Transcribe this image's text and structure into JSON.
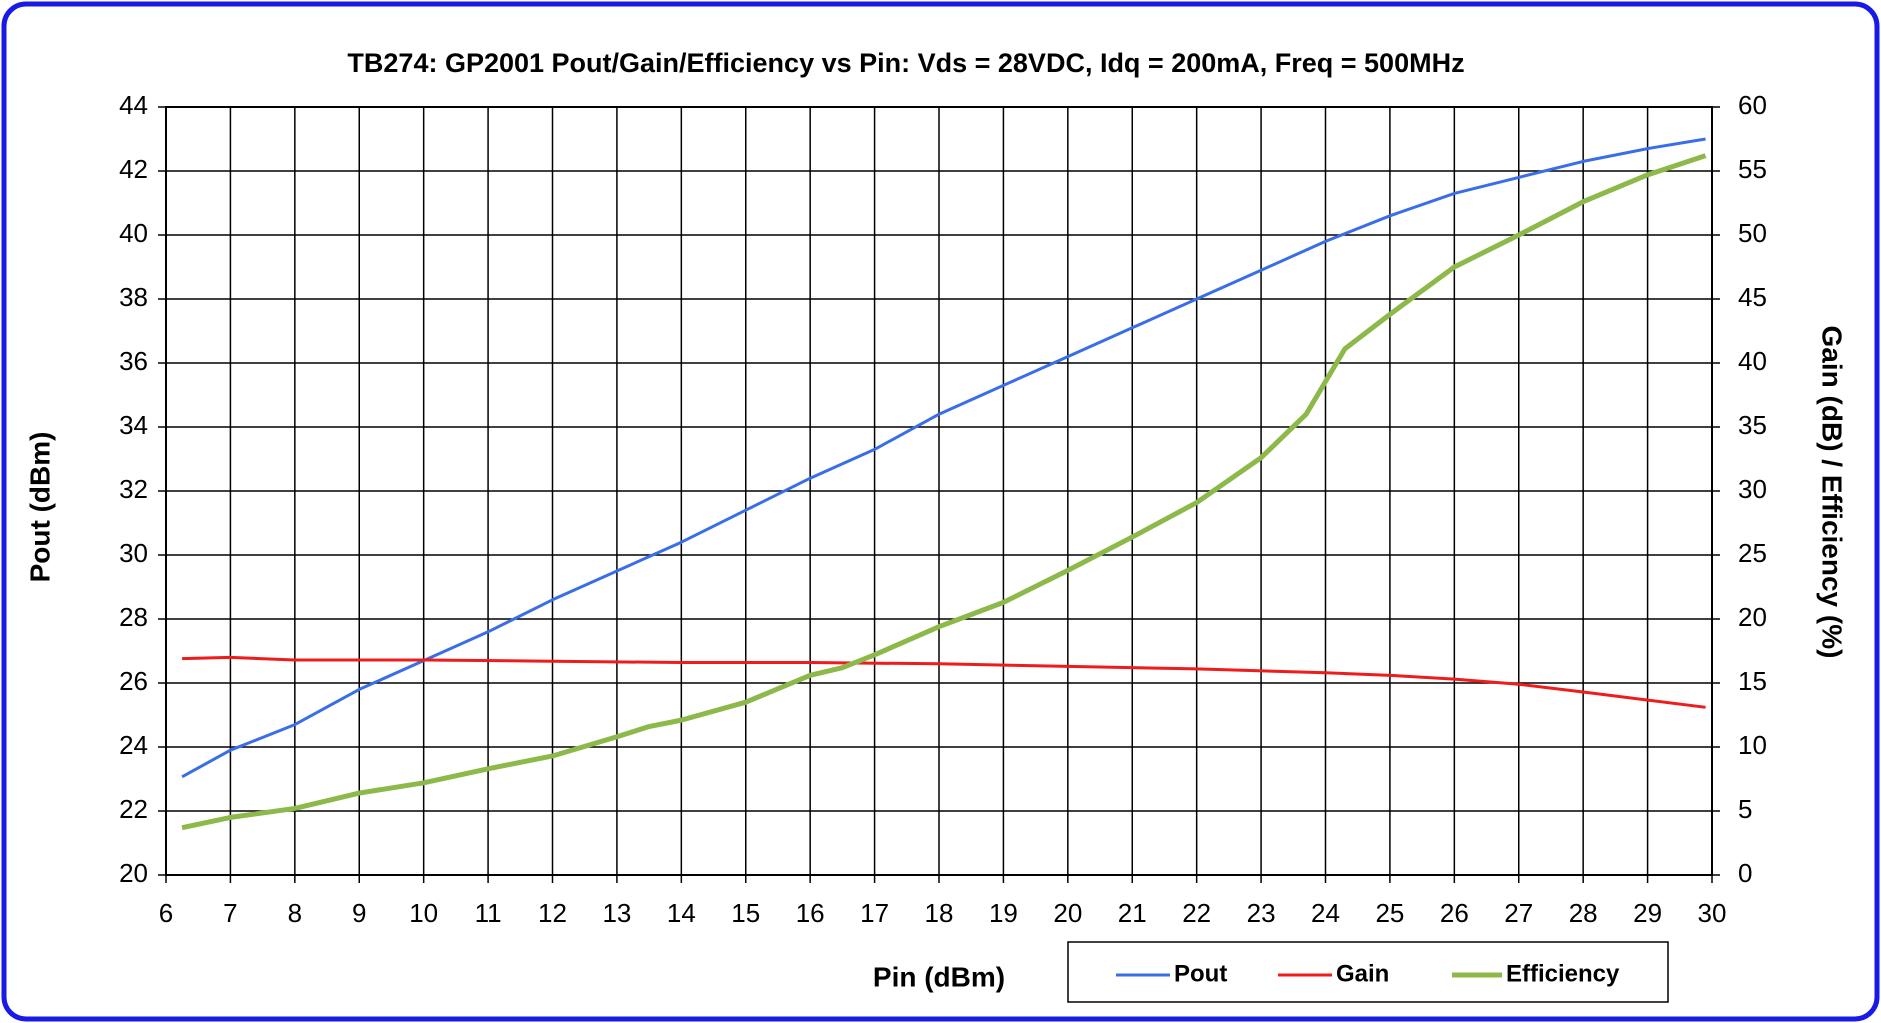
{
  "chart_data": {
    "type": "line",
    "title": "TB274: GP2001 Pout/Gain/Efficiency  vs Pin: Vds = 28VDC, Idq = 200mA,  Freq = 500MHz",
    "xlabel": "Pin (dBm)",
    "ylabel": "Pout (dBm)",
    "y2label": "Gain (dB) / Efficiency (%)",
    "xlim": [
      6,
      30
    ],
    "xticks": [
      6,
      7,
      8,
      9,
      10,
      11,
      12,
      13,
      14,
      15,
      16,
      17,
      18,
      19,
      20,
      21,
      22,
      23,
      24,
      25,
      26,
      27,
      28,
      29,
      30
    ],
    "ylim": [
      20,
      44
    ],
    "yticks": [
      20,
      22,
      24,
      26,
      28,
      30,
      32,
      34,
      36,
      38,
      40,
      42,
      44
    ],
    "y2lim": [
      0,
      60
    ],
    "y2ticks": [
      0,
      5,
      10,
      15,
      20,
      25,
      30,
      35,
      40,
      45,
      50,
      55,
      60
    ],
    "grid": true,
    "legend": "bottom-right",
    "series": [
      {
        "name": "Pout",
        "color": "#3a6ee8",
        "x": [
          6.25,
          7,
          8,
          9,
          10,
          11,
          12,
          13,
          14,
          15,
          16,
          17,
          18,
          19,
          20,
          21,
          22,
          23,
          24,
          25,
          26,
          27,
          28,
          29,
          29.9
        ],
        "values": [
          23.07,
          23.9,
          24.7,
          25.8,
          26.7,
          27.6,
          28.6,
          29.5,
          30.4,
          31.4,
          32.4,
          33.3,
          34.4,
          35.3,
          36.2,
          37.1,
          38.0,
          38.9,
          39.8,
          40.6,
          41.3,
          41.8,
          42.3,
          42.7,
          43.0
        ]
      },
      {
        "name": "Gain",
        "color": "#ee1c1c",
        "axis": "y2",
        "x": [
          6.25,
          7,
          8,
          10,
          12,
          14,
          16,
          18,
          20,
          22,
          24,
          25,
          26,
          27,
          28,
          29.9
        ],
        "values": [
          16.9,
          17.0,
          16.8,
          16.8,
          16.7,
          16.6,
          16.6,
          16.5,
          16.3,
          16.1,
          15.8,
          15.6,
          15.3,
          14.9,
          14.3,
          13.1
        ]
      },
      {
        "name": "Efficiency",
        "color": "#8db84a",
        "axis": "y2",
        "x": [
          6.25,
          7,
          8,
          9,
          10,
          11,
          12,
          13,
          13.5,
          14,
          15,
          16,
          16.5,
          17,
          18,
          19,
          20,
          21,
          22,
          23,
          23.7,
          24.3,
          25,
          26,
          27,
          28,
          29,
          29.9
        ],
        "values": [
          3.7,
          4.5,
          5.2,
          6.4,
          7.2,
          8.3,
          9.3,
          10.8,
          11.6,
          12.1,
          13.5,
          15.6,
          16.2,
          17.2,
          19.4,
          21.3,
          23.8,
          26.4,
          29.1,
          32.6,
          36.0,
          41.1,
          43.8,
          47.5,
          50.0,
          52.6,
          54.7,
          56.2
        ]
      }
    ]
  }
}
